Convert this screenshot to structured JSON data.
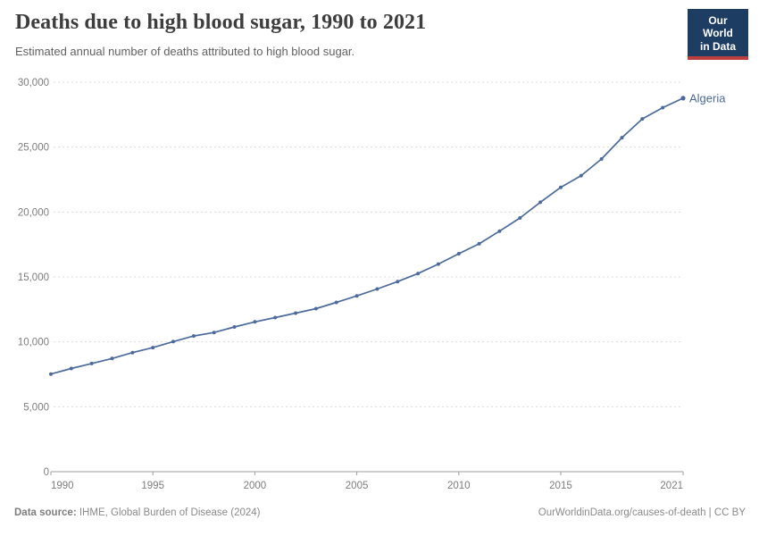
{
  "header": {
    "title": "Deaths due to high blood sugar, 1990 to 2021",
    "subtitle": "Estimated annual number of deaths attributed to high blood sugar.",
    "logo": {
      "line1": "Our World",
      "line2": "in Data"
    }
  },
  "footer": {
    "source_label": "Data source:",
    "source_value": " IHME, Global Burden of Disease (2024)",
    "credit": "OurWorldinData.org/causes-of-death | CC BY"
  },
  "chart_data": {
    "type": "line",
    "title": "Deaths due to high blood sugar, 1990 to 2021",
    "subtitle": "Estimated annual number of deaths attributed to high blood sugar.",
    "xlabel": "",
    "ylabel": "",
    "x_range": [
      1990,
      2021
    ],
    "y_range": [
      0,
      30000
    ],
    "x_ticks": [
      1990,
      1995,
      2000,
      2005,
      2010,
      2015,
      2021
    ],
    "y_ticks": [
      0,
      5000,
      10000,
      15000,
      20000,
      25000,
      30000
    ],
    "grid": "horizontal-dashed",
    "legend_position": "end-of-line-label",
    "x": [
      1990,
      1991,
      1992,
      1993,
      1994,
      1995,
      1996,
      1997,
      1998,
      1999,
      2000,
      2001,
      2002,
      2003,
      2004,
      2005,
      2006,
      2007,
      2008,
      2009,
      2010,
      2011,
      2012,
      2013,
      2014,
      2015,
      2016,
      2017,
      2018,
      2019,
      2020,
      2021
    ],
    "series": [
      {
        "name": "Algeria",
        "color": "#4c6a9c",
        "values": [
          7520,
          7950,
          8330,
          8720,
          9170,
          9560,
          10020,
          10450,
          10720,
          11150,
          11540,
          11870,
          12210,
          12560,
          13040,
          13540,
          14070,
          14640,
          15260,
          15990,
          16790,
          17550,
          18530,
          19540,
          20750,
          21900,
          22800,
          24080,
          25730,
          27170,
          28040,
          28770
        ]
      }
    ],
    "colors": {
      "line": "#4c6a9c",
      "grid": "#dcdcdc",
      "axis": "#9e9e9e",
      "tick_text": "#7d7d7d",
      "title": "#3d3d3d",
      "subtitle": "#616161",
      "footer": "#8a8a8a",
      "logo_bg": "#1d3d63",
      "logo_red": "#bc3e3e"
    }
  }
}
